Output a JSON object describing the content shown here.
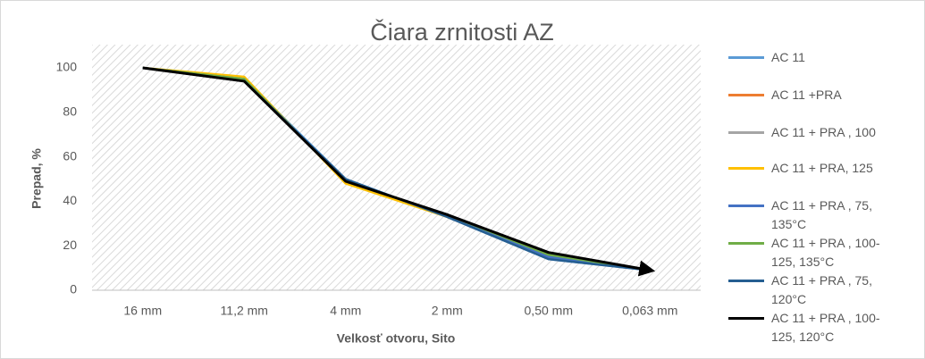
{
  "chart_data": {
    "type": "line",
    "title": "Čiara zrnitosti AZ",
    "x_label": "Velkosť otvoru, Sito",
    "y_label": "Prepad, %",
    "categories": [
      "16 mm",
      "11,2 mm",
      "4 mm",
      "2 mm",
      "0,50 mm",
      "0,063 mm"
    ],
    "ylim": [
      0,
      100
    ],
    "yticks": [
      0,
      20,
      40,
      60,
      80,
      100
    ],
    "grid": false,
    "legend": "right",
    "series": [
      {
        "name": "AC 11",
        "color": "#5b9bd5",
        "values": [
          100,
          95,
          50,
          33,
          14,
          9
        ]
      },
      {
        "name": "AC 11 +PRA",
        "color": "#ed7d31",
        "values": [
          100,
          95,
          49,
          33,
          15,
          9
        ]
      },
      {
        "name": "AC 11 + PRA , 100",
        "color": "#a5a5a5",
        "values": [
          100,
          95,
          49,
          33,
          15,
          9
        ]
      },
      {
        "name": "AC 11 + PRA, 125",
        "color": "#ffc000",
        "values": [
          100,
          96,
          48,
          33,
          16,
          9
        ]
      },
      {
        "name": "AC 11 + PRA , 75, 135°C",
        "color": "#4472c4",
        "values": [
          100,
          95,
          49,
          34,
          15,
          9
        ]
      },
      {
        "name": "AC 11 + PRA , 100-125, 135°C",
        "color": "#70ad47",
        "values": [
          100,
          95,
          49,
          34,
          16,
          9
        ]
      },
      {
        "name": "AC 11 + PRA , 75, 120°C",
        "color": "#255e91",
        "values": [
          100,
          94,
          50,
          33,
          14,
          9
        ]
      },
      {
        "name": "AC 11 + PRA , 100-125, 120°C",
        "color": "#000000",
        "line_end": "arrow",
        "values": [
          100,
          94,
          49,
          34,
          17,
          9
        ]
      }
    ]
  }
}
